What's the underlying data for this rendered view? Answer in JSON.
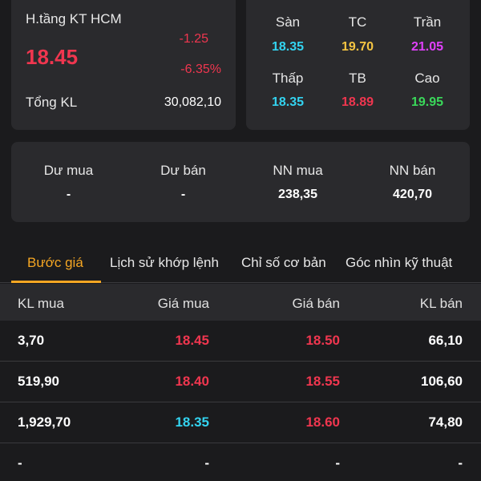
{
  "stock": {
    "name": "H.tầng KT HCM",
    "price": "18.45",
    "change": "-1.25",
    "change_pct": "-6.35%",
    "volume_label": "Tổng KL",
    "volume_value": "30,082,10"
  },
  "prices": [
    {
      "label": "Sàn",
      "value": "18.35",
      "color": "#33d3f0"
    },
    {
      "label": "TC",
      "value": "19.70",
      "color": "#f5c542"
    },
    {
      "label": "Trần",
      "value": "21.05",
      "color": "#e040fb"
    },
    {
      "label": "Thấp",
      "value": "18.35",
      "color": "#33d3f0"
    },
    {
      "label": "TB",
      "value": "18.89",
      "color": "#f0364f"
    },
    {
      "label": "Cao",
      "value": "19.95",
      "color": "#3ad85a"
    }
  ],
  "foreign": [
    {
      "label": "Dư mua",
      "value": "-"
    },
    {
      "label": "Dư bán",
      "value": "-"
    },
    {
      "label": "NN mua",
      "value": "238,35"
    },
    {
      "label": "NN bán",
      "value": "420,70"
    }
  ],
  "tabs": [
    {
      "label": "Bước giá",
      "active": true
    },
    {
      "label": "Lịch sử khớp lệnh",
      "active": false
    },
    {
      "label": "Chỉ số cơ bản",
      "active": false
    },
    {
      "label": "Góc nhìn kỹ thuật",
      "active": false
    }
  ],
  "order_book": {
    "headers": [
      "KL mua",
      "Giá mua",
      "Giá bán",
      "KL bán"
    ],
    "rows": [
      {
        "bid_vol": "3,70",
        "bid": "18.45",
        "ask": "18.50",
        "ask_vol": "66,10"
      },
      {
        "bid_vol": "519,90",
        "bid": "18.40",
        "ask": "18.55",
        "ask_vol": "106,60"
      },
      {
        "bid_vol": "1,929,70",
        "bid": "18.35",
        "ask": "18.60",
        "ask_vol": "74,80"
      },
      {
        "bid_vol": "-",
        "bid": "-",
        "ask": "-",
        "ask_vol": "-"
      }
    ]
  },
  "colors": {
    "up": "#3ad85a",
    "down": "#f0364f",
    "floor": "#33d3f0",
    "ref": "#f5c542",
    "ceiling": "#e040fb",
    "accent": "#f5a623"
  }
}
